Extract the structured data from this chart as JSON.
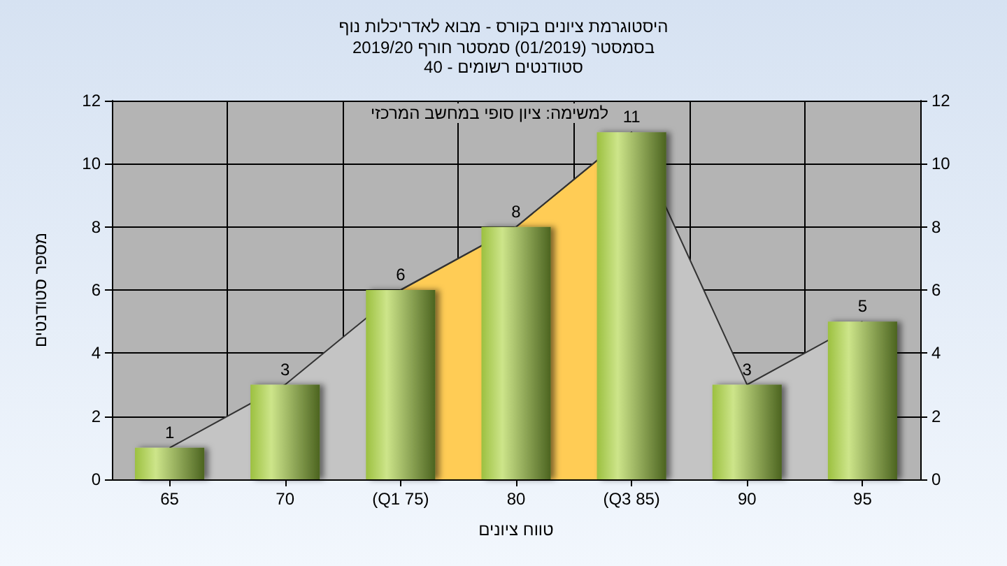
{
  "chart_data": {
    "type": "bar",
    "title": "היסטוגרמת ציונים בקורס - מבוא לאדריכלות נוף",
    "subtitle": "בסמסטר (01/2019) סמסטר חורף 2019/20\nסטודנטים רשומים - 40",
    "xlabel": "טווח ציונים",
    "ylabel": "מספר סטודנטים",
    "annotations": [
      "למשימה: ציון סופי במחשב המרכזי"
    ],
    "categories": [
      "65",
      "70",
      "(Q1 75)",
      "80",
      "(Q3 85)",
      "90",
      "95"
    ],
    "series": [
      {
        "type": "area",
        "color": "#c4c4c4",
        "values": [
          1,
          3,
          6,
          8,
          11,
          3,
          5
        ]
      },
      {
        "type": "area",
        "color": "#ffcc55",
        "values": [
          null,
          null,
          6,
          8,
          11,
          null,
          null
        ]
      },
      {
        "color": "#9cc040",
        "values": [
          1,
          3,
          6,
          8,
          11,
          3,
          5
        ],
        "value_labels": [
          "1",
          "3",
          "6",
          "8",
          "11",
          "3",
          "5"
        ]
      }
    ],
    "ylim": [
      0,
      12
    ],
    "yticks": [
      0,
      2,
      4,
      6,
      8,
      10,
      12
    ],
    "y2lim": [
      0,
      12
    ],
    "y2ticks": [
      0,
      2,
      4,
      6,
      8,
      10,
      12
    ],
    "grid": true
  }
}
